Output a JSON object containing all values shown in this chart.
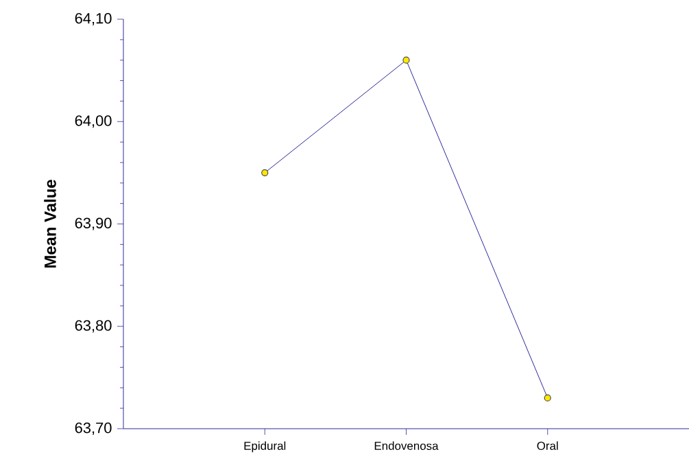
{
  "chart_data": {
    "type": "line",
    "ylabel": "Mean Value",
    "categories": [
      "Epidural",
      "Endovenosa",
      "Oral"
    ],
    "series": [
      {
        "color": "#2a2a9a",
        "values": [
          63.95,
          64.06,
          63.73
        ]
      }
    ],
    "marker": "circle",
    "line_style": "solid",
    "grid": false,
    "ylim": [
      63.7,
      64.1
    ],
    "yticks": [
      {
        "value": 63.7,
        "label": "63,70"
      },
      {
        "value": 63.72,
        "label": null
      },
      {
        "value": 63.74,
        "label": null
      },
      {
        "value": 63.76,
        "label": null
      },
      {
        "value": 63.78,
        "label": null
      },
      {
        "value": 63.8,
        "label": "63,80"
      },
      {
        "value": 63.82,
        "label": null
      },
      {
        "value": 63.84,
        "label": null
      },
      {
        "value": 63.86,
        "label": null
      },
      {
        "value": 63.88,
        "label": null
      },
      {
        "value": 63.9,
        "label": "63,90"
      },
      {
        "value": 63.92,
        "label": null
      },
      {
        "value": 63.94,
        "label": null
      },
      {
        "value": 63.96,
        "label": null
      },
      {
        "value": 63.98,
        "label": null
      },
      {
        "value": 64.0,
        "label": "64,00"
      },
      {
        "value": 64.02,
        "label": null
      },
      {
        "value": 64.04,
        "label": null
      },
      {
        "value": 64.06,
        "label": null
      },
      {
        "value": 64.08,
        "label": null
      },
      {
        "value": 64.1,
        "label": "64,10"
      }
    ]
  }
}
